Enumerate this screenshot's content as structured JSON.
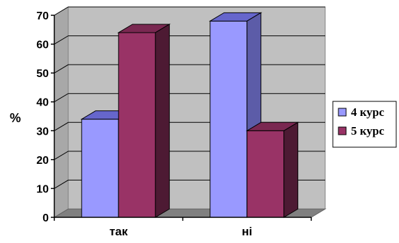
{
  "chart_data": {
    "type": "bar",
    "title": "",
    "xlabel": "",
    "ylabel": "%",
    "ylim": [
      0,
      70
    ],
    "yticks": [
      0,
      10,
      20,
      30,
      40,
      50,
      60,
      70
    ],
    "grid": true,
    "legend_position": "right",
    "categories": [
      "так",
      "ні"
    ],
    "series": [
      {
        "name": "4 курс",
        "values": [
          34,
          68
        ],
        "color": "#9999ff",
        "top_color": "#6666cc",
        "side_color": "#5c5ca8"
      },
      {
        "name": "5 курс",
        "values": [
          64,
          30
        ],
        "color": "#993366",
        "top_color": "#7a2851",
        "side_color": "#4d1a33"
      }
    ],
    "wall_color": "#c0c0c0",
    "floor_color": "#808080"
  }
}
